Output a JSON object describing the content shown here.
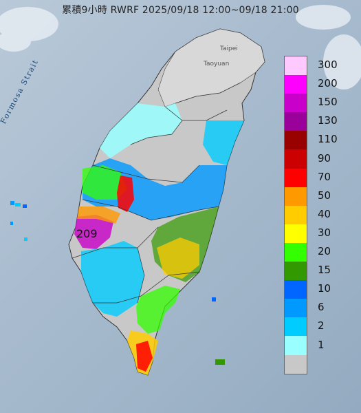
{
  "title": "累積9小時 RWRF 2025/09/18 12:00~09/18 21:00",
  "map_labels": {
    "strait": "Formosa Strait",
    "taipei": "Taipei",
    "taoyuan": "Taoyuan",
    "max_value": "209"
  },
  "legend": {
    "items": [
      {
        "label": "300",
        "color": "#fec9fe"
      },
      {
        "label": "200",
        "color": "#fe00fe"
      },
      {
        "label": "150",
        "color": "#c900c9"
      },
      {
        "label": "130",
        "color": "#9a009a"
      },
      {
        "label": "110",
        "color": "#990000"
      },
      {
        "label": "90",
        "color": "#cc0000"
      },
      {
        "label": "70",
        "color": "#ff0000"
      },
      {
        "label": "50",
        "color": "#ff9900"
      },
      {
        "label": "40",
        "color": "#ffcc00"
      },
      {
        "label": "30",
        "color": "#ffff00"
      },
      {
        "label": "20",
        "color": "#33ff00"
      },
      {
        "label": "15",
        "color": "#339900"
      },
      {
        "label": "10",
        "color": "#0066ff"
      },
      {
        "label": "6",
        "color": "#0099ff"
      },
      {
        "label": "2",
        "color": "#00ccff"
      },
      {
        "label": "1",
        "color": "#99ffff"
      },
      {
        "label": "",
        "color": "#c8c8c8"
      }
    ]
  }
}
